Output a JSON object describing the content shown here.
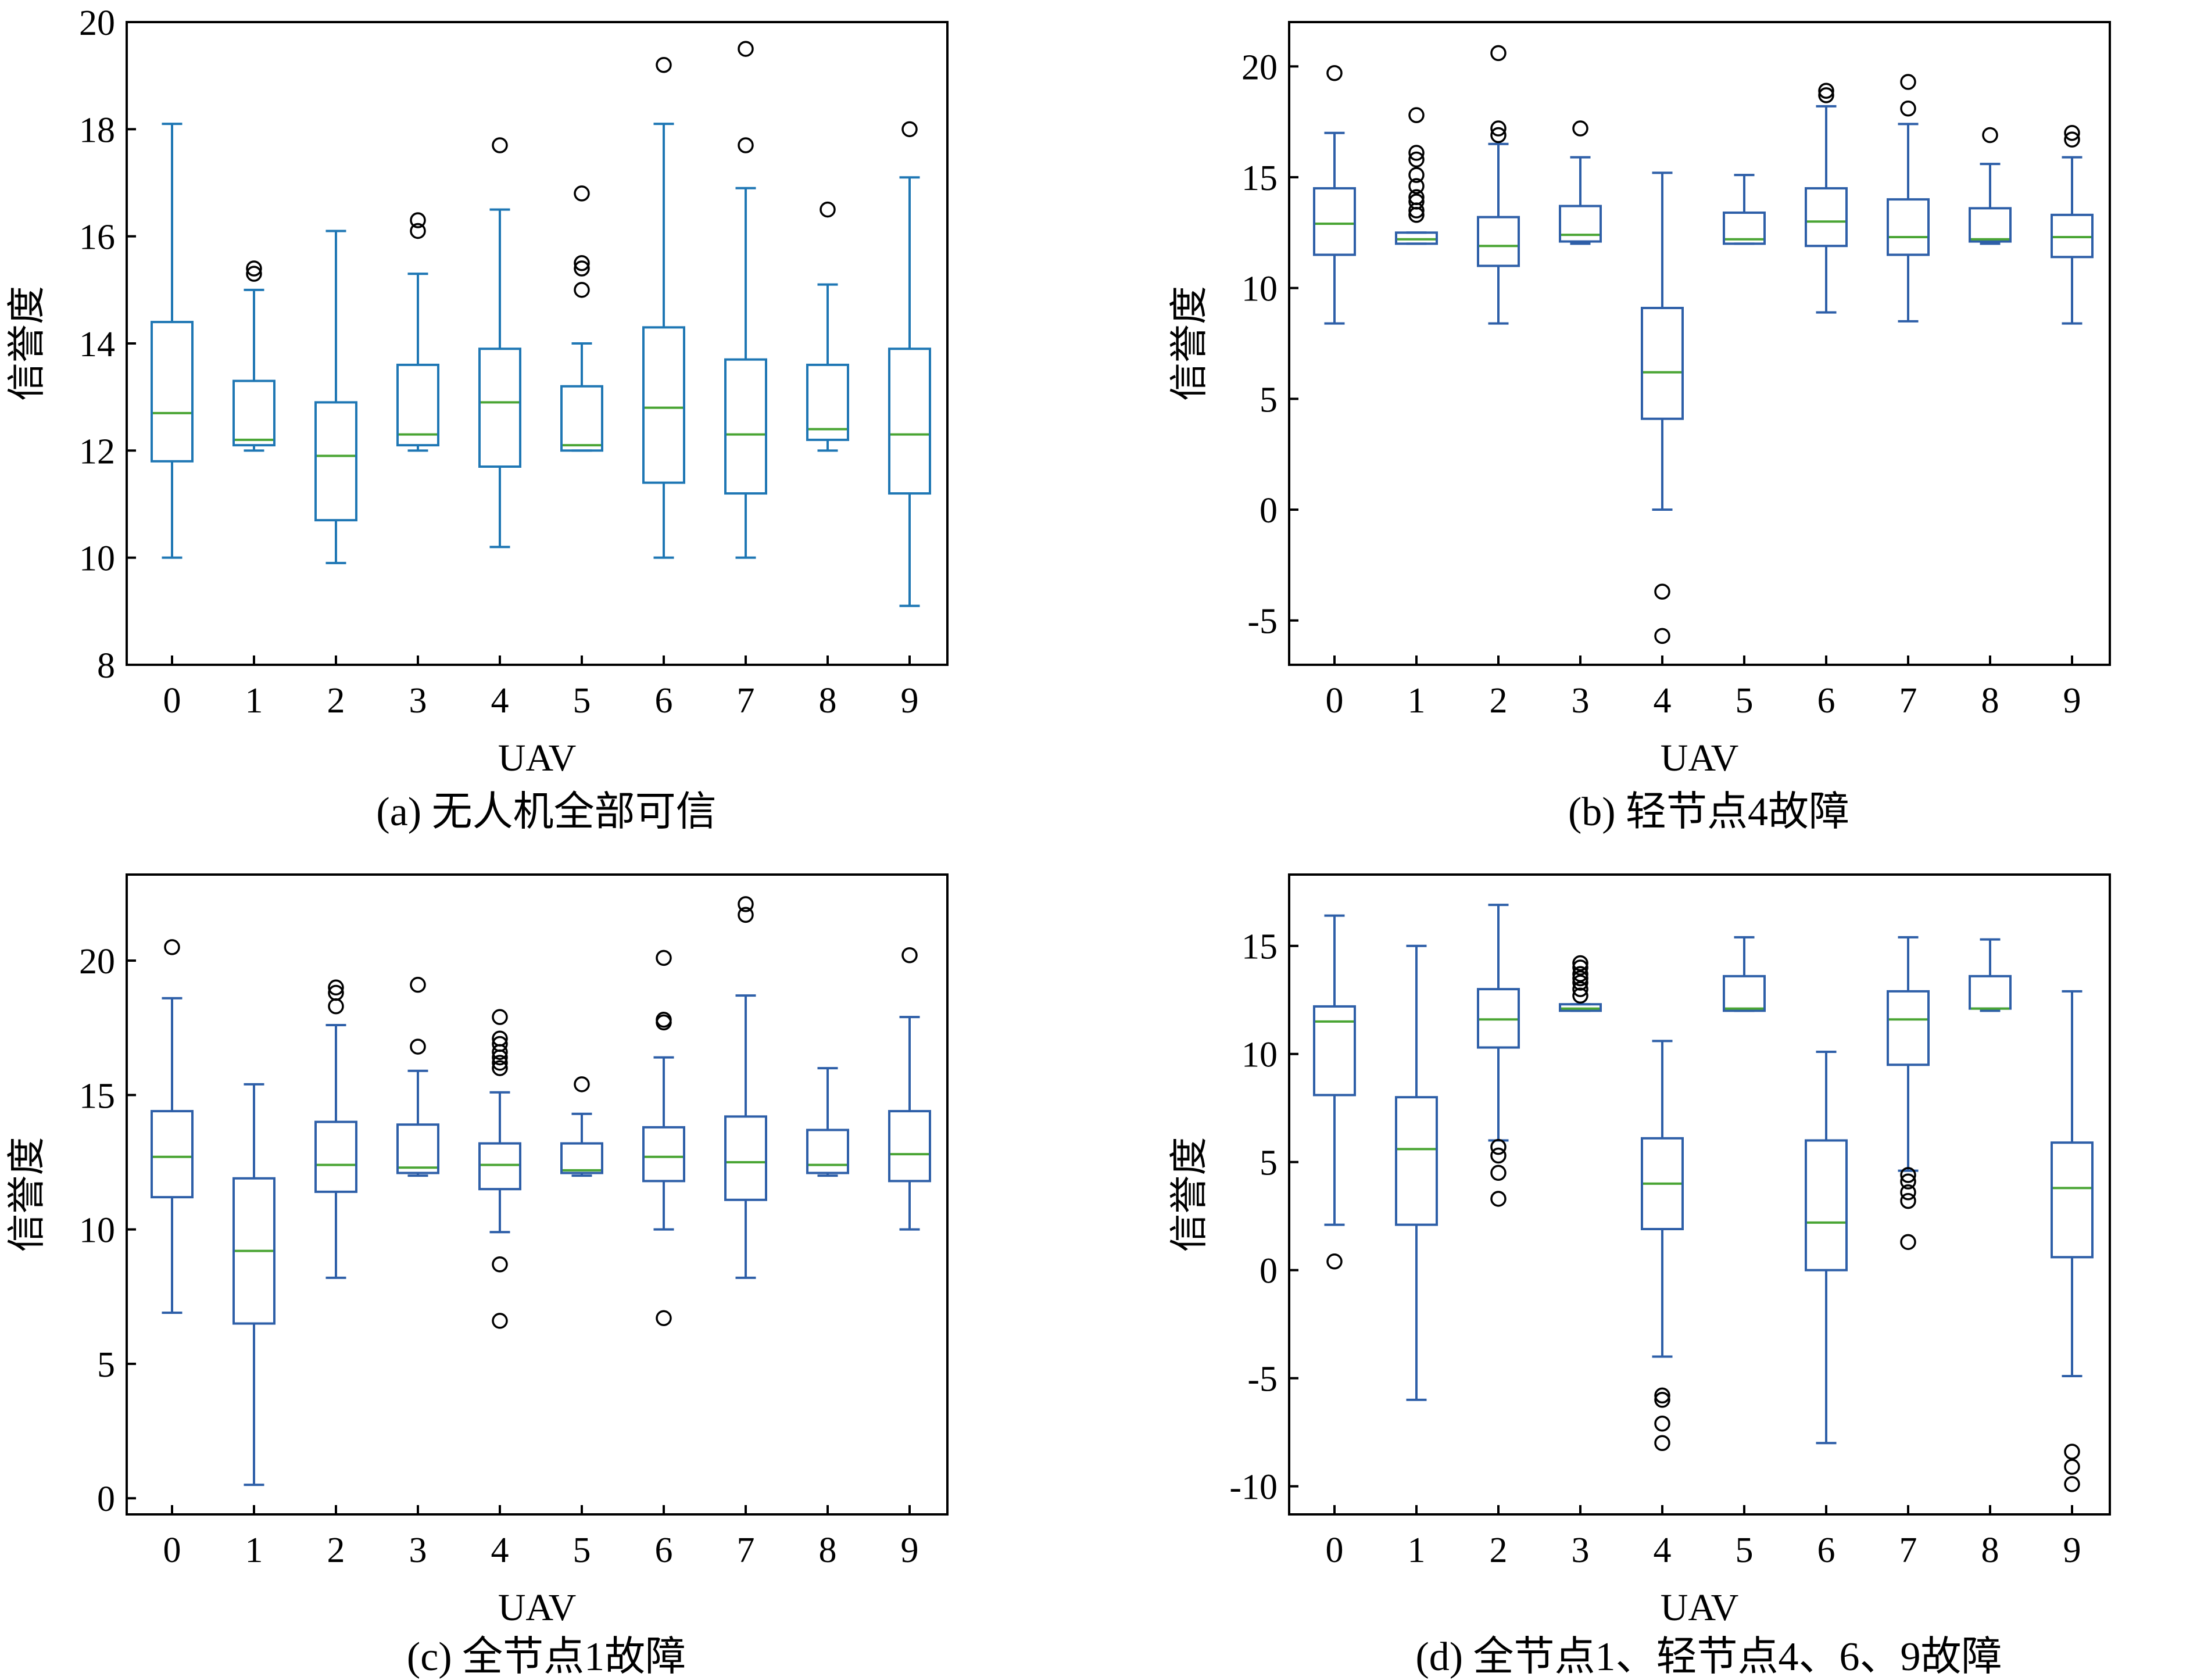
{
  "figure": {
    "colors": {
      "box_a": "#1f77b4",
      "box_bcd": "#2e5fa8",
      "median": "#4aa534",
      "outlier": "#000000"
    }
  },
  "chart_data": [
    {
      "type": "box",
      "caption": "(a) 无人机全部可信",
      "xlabel": "UAV",
      "ylabel": "信誉度",
      "categories": [
        "0",
        "1",
        "2",
        "3",
        "4",
        "5",
        "6",
        "7",
        "8",
        "9"
      ],
      "ylim": [
        8,
        20
      ],
      "yticks": [
        8,
        10,
        12,
        14,
        16,
        18,
        20
      ],
      "boxes": [
        {
          "min": 10.0,
          "q1": 11.8,
          "median": 12.7,
          "q3": 14.4,
          "max": 18.1,
          "outliers": []
        },
        {
          "min": 12.0,
          "q1": 12.1,
          "median": 12.2,
          "q3": 13.3,
          "max": 15.0,
          "outliers": [
            15.3,
            15.4
          ]
        },
        {
          "min": 9.9,
          "q1": 10.7,
          "median": 11.9,
          "q3": 12.9,
          "max": 16.1,
          "outliers": []
        },
        {
          "min": 12.0,
          "q1": 12.1,
          "median": 12.3,
          "q3": 13.6,
          "max": 15.3,
          "outliers": [
            16.1,
            16.3
          ]
        },
        {
          "min": 10.2,
          "q1": 11.7,
          "median": 12.9,
          "q3": 13.9,
          "max": 16.5,
          "outliers": [
            17.7
          ]
        },
        {
          "min": 12.0,
          "q1": 12.0,
          "median": 12.1,
          "q3": 13.2,
          "max": 14.0,
          "outliers": [
            15.0,
            15.4,
            15.5,
            16.8
          ]
        },
        {
          "min": 10.0,
          "q1": 11.4,
          "median": 12.8,
          "q3": 14.3,
          "max": 18.1,
          "outliers": [
            19.2
          ]
        },
        {
          "min": 10.0,
          "q1": 11.2,
          "median": 12.3,
          "q3": 13.7,
          "max": 16.9,
          "outliers": [
            17.7,
            19.5
          ]
        },
        {
          "min": 12.0,
          "q1": 12.2,
          "median": 12.4,
          "q3": 13.6,
          "max": 15.1,
          "outliers": [
            16.5
          ]
        },
        {
          "min": 9.1,
          "q1": 11.2,
          "median": 12.3,
          "q3": 13.9,
          "max": 17.1,
          "outliers": [
            18.0
          ]
        }
      ]
    },
    {
      "type": "box",
      "caption": "(b) 轻节点4故障",
      "xlabel": "UAV",
      "ylabel": "信誉度",
      "categories": [
        "0",
        "1",
        "2",
        "3",
        "4",
        "5",
        "6",
        "7",
        "8",
        "9"
      ],
      "ylim": [
        -7,
        22
      ],
      "yticks": [
        -5,
        0,
        5,
        10,
        15,
        20
      ],
      "boxes": [
        {
          "min": 8.4,
          "q1": 11.5,
          "median": 12.9,
          "q3": 14.5,
          "max": 17.0,
          "outliers": [
            19.7
          ]
        },
        {
          "min": 12.0,
          "q1": 12.0,
          "median": 12.2,
          "q3": 12.5,
          "max": 12.5,
          "outliers": [
            13.3,
            13.5,
            13.9,
            14.1,
            14.6,
            15.1,
            15.8,
            16.1,
            17.8
          ]
        },
        {
          "min": 8.4,
          "q1": 11.0,
          "median": 11.9,
          "q3": 13.2,
          "max": 16.5,
          "outliers": [
            16.9,
            17.2,
            20.6
          ]
        },
        {
          "min": 12.0,
          "q1": 12.1,
          "median": 12.4,
          "q3": 13.7,
          "max": 15.9,
          "outliers": [
            17.2
          ]
        },
        {
          "min": 0.0,
          "q1": 4.1,
          "median": 6.2,
          "q3": 9.1,
          "max": 15.2,
          "outliers": [
            -3.7,
            -5.7
          ]
        },
        {
          "min": 12.0,
          "q1": 12.0,
          "median": 12.2,
          "q3": 13.4,
          "max": 15.1,
          "outliers": []
        },
        {
          "min": 8.9,
          "q1": 11.9,
          "median": 13.0,
          "q3": 14.5,
          "max": 18.2,
          "outliers": [
            18.7,
            18.9
          ]
        },
        {
          "min": 8.5,
          "q1": 11.5,
          "median": 12.3,
          "q3": 14.0,
          "max": 17.4,
          "outliers": [
            18.1,
            19.3
          ]
        },
        {
          "min": 12.0,
          "q1": 12.1,
          "median": 12.2,
          "q3": 13.6,
          "max": 15.6,
          "outliers": [
            16.9
          ]
        },
        {
          "min": 8.4,
          "q1": 11.4,
          "median": 12.3,
          "q3": 13.3,
          "max": 15.9,
          "outliers": [
            16.7,
            17.0
          ]
        }
      ]
    },
    {
      "type": "box",
      "caption": "(c) 全节点1故障",
      "xlabel": "UAV",
      "ylabel": "信誉度",
      "categories": [
        "0",
        "1",
        "2",
        "3",
        "4",
        "5",
        "6",
        "7",
        "8",
        "9"
      ],
      "ylim": [
        -0.6,
        23.2
      ],
      "yticks": [
        0,
        5,
        10,
        15,
        20
      ],
      "boxes": [
        {
          "min": 6.9,
          "q1": 11.2,
          "median": 12.7,
          "q3": 14.4,
          "max": 18.6,
          "outliers": [
            20.5
          ]
        },
        {
          "min": 0.5,
          "q1": 6.5,
          "median": 9.2,
          "q3": 11.9,
          "max": 15.4,
          "outliers": []
        },
        {
          "min": 8.2,
          "q1": 11.4,
          "median": 12.4,
          "q3": 14.0,
          "max": 17.6,
          "outliers": [
            18.3,
            18.8,
            19.0
          ]
        },
        {
          "min": 12.0,
          "q1": 12.1,
          "median": 12.3,
          "q3": 13.9,
          "max": 15.9,
          "outliers": [
            16.8,
            19.1
          ]
        },
        {
          "min": 9.9,
          "q1": 11.5,
          "median": 12.4,
          "q3": 13.2,
          "max": 15.1,
          "outliers": [
            6.6,
            8.7,
            16.0,
            16.2,
            16.4,
            16.6,
            16.9,
            17.1,
            17.9
          ]
        },
        {
          "min": 12.0,
          "q1": 12.1,
          "median": 12.2,
          "q3": 13.2,
          "max": 14.3,
          "outliers": [
            15.4
          ]
        },
        {
          "min": 10.0,
          "q1": 11.8,
          "median": 12.7,
          "q3": 13.8,
          "max": 16.4,
          "outliers": [
            6.7,
            17.7,
            17.8,
            20.1
          ]
        },
        {
          "min": 8.2,
          "q1": 11.1,
          "median": 12.5,
          "q3": 14.2,
          "max": 18.7,
          "outliers": [
            21.7,
            22.1
          ]
        },
        {
          "min": 12.0,
          "q1": 12.1,
          "median": 12.4,
          "q3": 13.7,
          "max": 16.0,
          "outliers": []
        },
        {
          "min": 10.0,
          "q1": 11.8,
          "median": 12.8,
          "q3": 14.4,
          "max": 17.9,
          "outliers": [
            20.2
          ]
        }
      ]
    },
    {
      "type": "box",
      "caption": "(d) 全节点1、轻节点4、6、9故障",
      "xlabel": "UAV",
      "ylabel": "信誉度",
      "categories": [
        "0",
        "1",
        "2",
        "3",
        "4",
        "5",
        "6",
        "7",
        "8",
        "9"
      ],
      "ylim": [
        -11.3,
        18.3
      ],
      "yticks": [
        -10,
        -5,
        0,
        5,
        10,
        15
      ],
      "boxes": [
        {
          "min": 2.1,
          "q1": 8.1,
          "median": 11.5,
          "q3": 12.2,
          "max": 16.4,
          "outliers": [
            0.4
          ]
        },
        {
          "min": -6.0,
          "q1": 2.1,
          "median": 5.6,
          "q3": 8.0,
          "max": 15.0,
          "outliers": []
        },
        {
          "min": 6.0,
          "q1": 10.3,
          "median": 11.6,
          "q3": 13.0,
          "max": 16.9,
          "outliers": [
            3.3,
            4.5,
            5.3,
            5.7
          ]
        },
        {
          "min": 12.0,
          "q1": 12.0,
          "median": 12.1,
          "q3": 12.3,
          "max": 12.3,
          "outliers": [
            12.7,
            13.0,
            13.3,
            13.5,
            13.7,
            14.0,
            14.2
          ]
        },
        {
          "min": -4.0,
          "q1": 1.9,
          "median": 4.0,
          "q3": 6.1,
          "max": 10.6,
          "outliers": [
            -5.8,
            -6.0,
            -7.1,
            -8.0
          ]
        },
        {
          "min": 12.0,
          "q1": 12.0,
          "median": 12.1,
          "q3": 13.6,
          "max": 15.4,
          "outliers": []
        },
        {
          "min": -8.0,
          "q1": 0.0,
          "median": 2.2,
          "q3": 6.0,
          "max": 10.1,
          "outliers": []
        },
        {
          "min": 4.6,
          "q1": 9.5,
          "median": 11.6,
          "q3": 12.9,
          "max": 15.4,
          "outliers": [
            1.3,
            3.2,
            3.6,
            4.1,
            4.4
          ]
        },
        {
          "min": 12.0,
          "q1": 12.1,
          "median": 12.1,
          "q3": 13.6,
          "max": 15.3,
          "outliers": []
        },
        {
          "min": -4.9,
          "q1": 0.6,
          "median": 3.8,
          "q3": 5.9,
          "max": 12.9,
          "outliers": [
            -8.4,
            -9.1,
            -9.9
          ]
        }
      ]
    }
  ]
}
